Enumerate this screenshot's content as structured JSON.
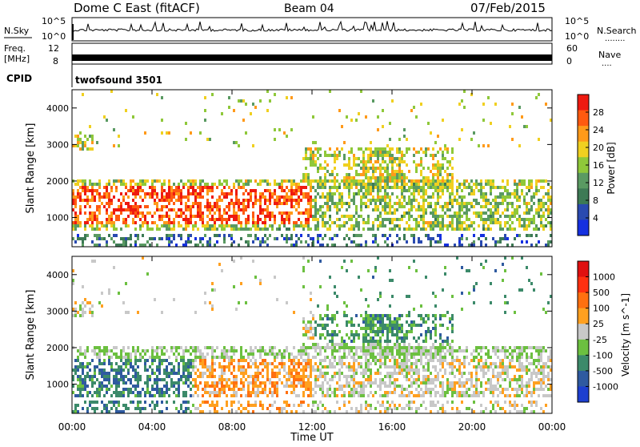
{
  "header": {
    "radar": "Dome C East (fitACF)",
    "beam": "Beam 04",
    "date": "07/Feb/2015"
  },
  "top_panels": {
    "nsky_label": "N.Sky",
    "nsky_ticks": [
      "10^5",
      "10^0"
    ],
    "nsky_right_ticks": [
      "10^5",
      "10^0"
    ],
    "nsearch_label": "N.Search",
    "nsearch_dots": "........",
    "freq_label_1": "Freq.",
    "freq_label_2": "[MHz]",
    "freq_ticks": [
      "12",
      "8"
    ],
    "nave_ticks": [
      "60",
      "0"
    ],
    "nave_label": "Nave",
    "nave_dots": "....",
    "cpid_label": "CPID",
    "cpid_value": "twofsound 3501"
  },
  "chart_data": [
    {
      "type": "heatmap",
      "title": "",
      "xlabel": "Time UT",
      "ylabel": "Slant Range [km]",
      "x_ticks": [
        "00:00",
        "04:00",
        "08:00",
        "12:00",
        "16:00",
        "20:00",
        "00:00"
      ],
      "xlim": [
        0,
        24
      ],
      "y_ticks": [
        "4000",
        "3000",
        "2000",
        "1000"
      ],
      "ylim": [
        200,
        4500
      ],
      "colorbar": {
        "label": "Power [dB]",
        "ticks": [
          "28",
          "24",
          "20",
          "16",
          "12",
          "8",
          "4"
        ],
        "range": [
          0,
          32
        ],
        "colors": [
          "#1530e0",
          "#2a4ab0",
          "#3d7a55",
          "#5a9a62",
          "#8fc83a",
          "#f0d020",
          "#ff9a1a",
          "#ff5a10",
          "#ee1a10"
        ]
      }
    },
    {
      "type": "heatmap",
      "title": "",
      "xlabel": "Time UT",
      "ylabel": "Slant Range [km]",
      "x_ticks": [
        "00:00",
        "04:00",
        "08:00",
        "12:00",
        "16:00",
        "20:00",
        "00:00"
      ],
      "xlim": [
        0,
        24
      ],
      "y_ticks": [
        "4000",
        "3000",
        "2000",
        "1000"
      ],
      "ylim": [
        200,
        4500
      ],
      "colorbar": {
        "label": "Velocity [m s^-1]",
        "ticks": [
          "1000",
          "500",
          "100",
          "25",
          "-25",
          "-100",
          "-500",
          "-1000"
        ],
        "range": [
          -1200,
          1200
        ],
        "colors": [
          "#1d3fd0",
          "#2f5aa0",
          "#3c8a6a",
          "#6cc040",
          "#c8c8c8",
          "#ffa020",
          "#ff7010",
          "#ff3010",
          "#e01010"
        ]
      }
    }
  ]
}
